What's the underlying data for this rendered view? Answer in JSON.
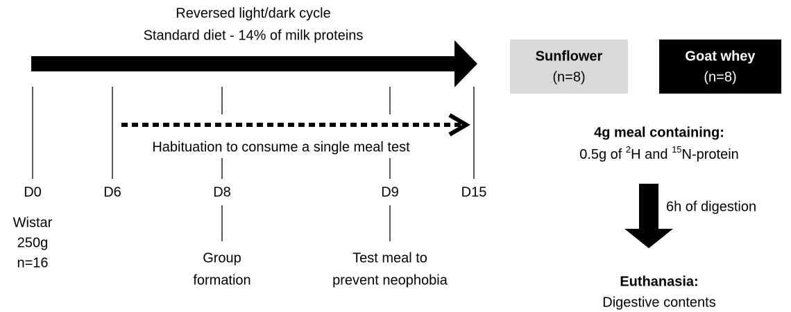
{
  "timeline": {
    "title_lines": [
      "Reversed light/dark cycle",
      "Standard diet - 14% of milk proteins"
    ],
    "habituation": "Habituation to consume a single meal test",
    "days": [
      {
        "label": "D0",
        "notes": [
          "Wistar",
          "250g",
          "n=16"
        ]
      },
      {
        "label": "D6",
        "notes": []
      },
      {
        "label": "D8",
        "notes": [
          "Group",
          "formation"
        ]
      },
      {
        "label": "D9",
        "notes": [
          "Test meal to",
          "prevent neophobia"
        ]
      },
      {
        "label": "D15",
        "notes": []
      }
    ]
  },
  "groups": [
    {
      "name": "Sunflower",
      "n": "(n=8)"
    },
    {
      "name": "Goat whey",
      "n": "(n=8)"
    }
  ],
  "meal": {
    "title": "4g meal containing:",
    "line_parts": [
      "0.5g of ",
      "2",
      "H and ",
      "15",
      "N-protein"
    ]
  },
  "digestion": "6h of digestion",
  "end": {
    "title": "Euthanasia:",
    "subtitle": "Digestive contents"
  }
}
